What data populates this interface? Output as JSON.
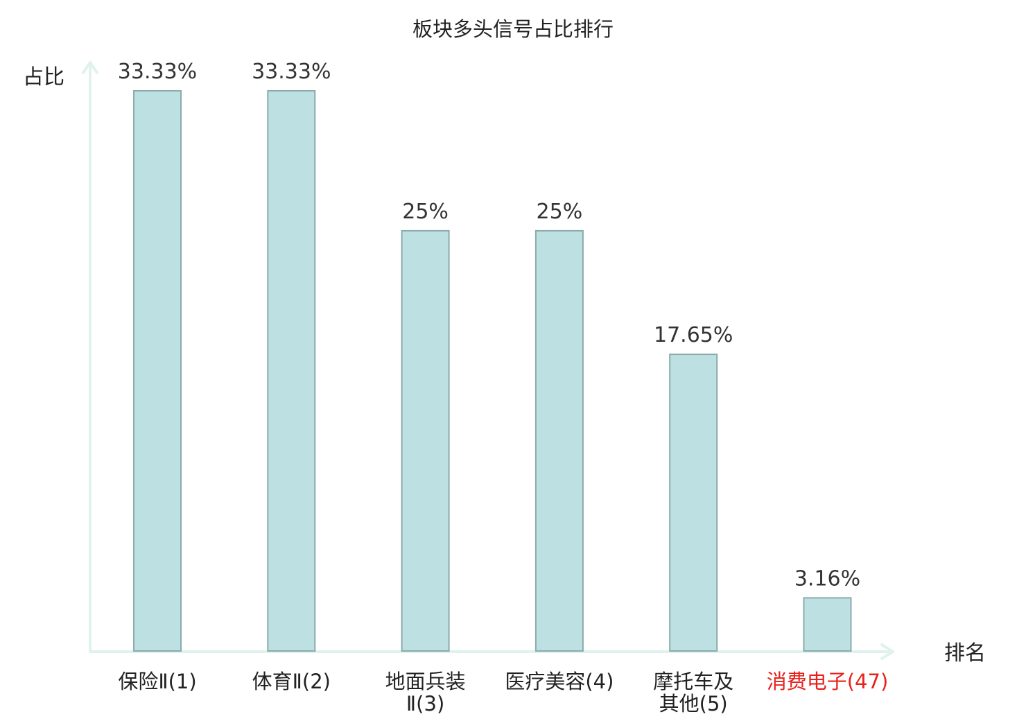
{
  "chart_data": {
    "type": "bar",
    "title": "板块多头信号占比排行",
    "ylabel": "占比",
    "xlabel": "排名",
    "ylim": [
      0,
      35
    ],
    "grid": false,
    "categories": [
      {
        "name_lines": [
          "保险Ⅱ"
        ],
        "rank_suffix": "(1)",
        "highlight": false
      },
      {
        "name_lines": [
          "体育Ⅱ"
        ],
        "rank_suffix": "(2)",
        "highlight": false
      },
      {
        "name_lines": [
          "地面兵装",
          "Ⅱ"
        ],
        "rank_suffix": "(3)",
        "highlight": false
      },
      {
        "name_lines": [
          "医疗美容"
        ],
        "rank_suffix": "(4)",
        "highlight": false
      },
      {
        "name_lines": [
          "摩托车及",
          "其他"
        ],
        "rank_suffix": "(5)",
        "highlight": false
      },
      {
        "name_lines": [
          "消费电子"
        ],
        "rank_suffix": "(47)",
        "highlight": true
      }
    ],
    "values": [
      33.33,
      33.33,
      25,
      25,
      17.65,
      3.16
    ],
    "value_labels": [
      "33.33%",
      "33.33%",
      "25%",
      "25%",
      "17.65%",
      "3.16%"
    ],
    "colors": {
      "bar_fill": "#bde1e3",
      "bar_stroke": "#8aabab",
      "axis": "#dff2ee",
      "text": "#222222",
      "value_text": "#333333",
      "highlight_text": "#e8211c"
    }
  }
}
